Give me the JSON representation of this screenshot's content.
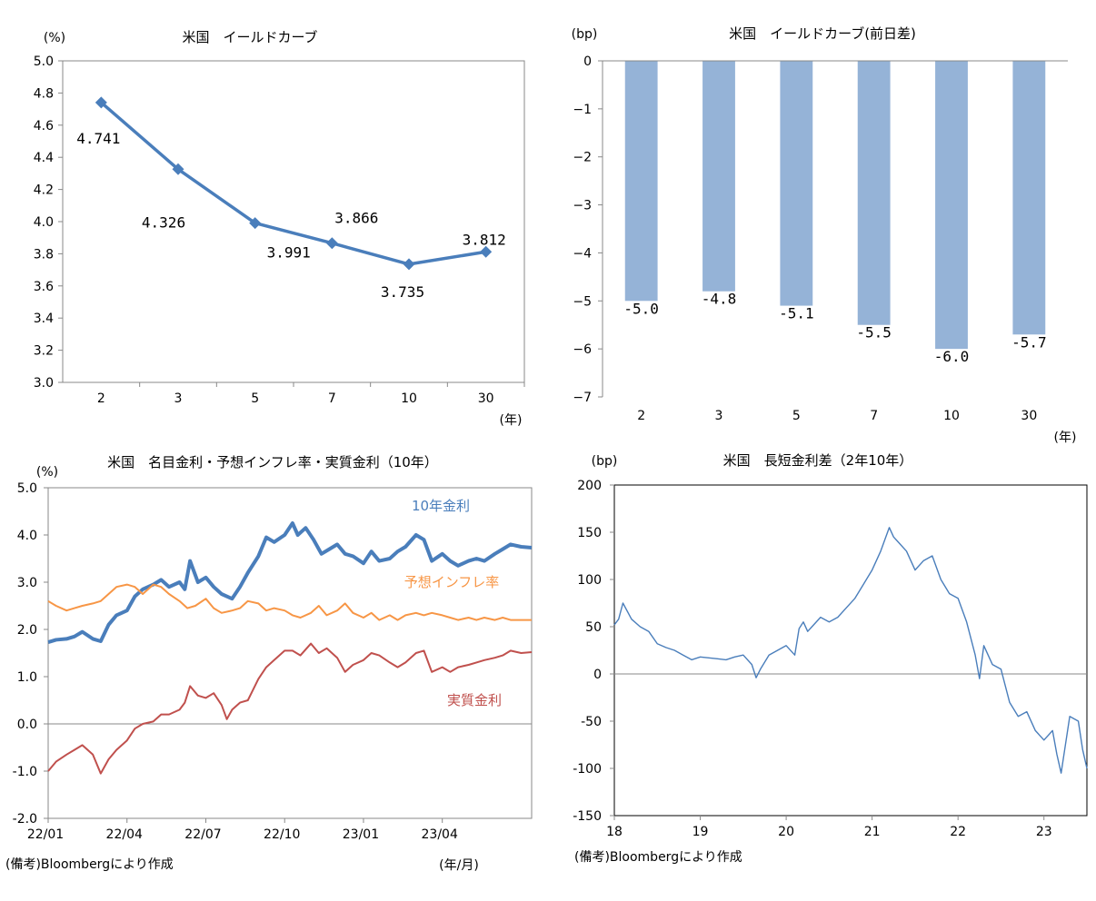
{
  "colors": {
    "yield_line": "#4A7EBB",
    "bar_fill": "#95B3D7",
    "nominal": "#4A7EBB",
    "inflation": "#F79646",
    "real": "#C0504D",
    "spread": "#4A7EBB",
    "axis": "#888888"
  },
  "footnotes": {
    "left": "(備考)Bloombergにより作成",
    "right": "(備考)Bloombergにより作成"
  },
  "chart_data": [
    {
      "type": "line",
      "title": "米国　イールドカーブ",
      "unit_label": "(%)",
      "xlabel": "(年)",
      "categories": [
        "2",
        "3",
        "5",
        "7",
        "10",
        "30"
      ],
      "values": [
        4.741,
        4.326,
        3.991,
        3.866,
        3.735,
        3.812
      ],
      "data_labels": [
        "4.741",
        "4.326",
        "3.991",
        "3.866",
        "3.735",
        "3.812"
      ],
      "ylim": [
        3.0,
        5.0
      ],
      "yticks": [
        "5.0",
        "4.8",
        "4.6",
        "4.4",
        "4.2",
        "4.0",
        "3.8",
        "3.6",
        "3.4",
        "3.2",
        "3.0"
      ],
      "marker": "diamond",
      "grid": false
    },
    {
      "type": "bar",
      "title": "米国　イールドカーブ(前日差)",
      "unit_label": "(bp)",
      "xlabel": "(年)",
      "categories": [
        "2",
        "3",
        "5",
        "7",
        "10",
        "30"
      ],
      "values": [
        -5.0,
        -4.8,
        -5.1,
        -5.5,
        -6.0,
        -5.7
      ],
      "data_labels": [
        "-5.0",
        "-4.8",
        "-5.1",
        "-5.5",
        "-6.0",
        "-5.7"
      ],
      "ylim": [
        -7,
        0
      ],
      "yticks": [
        "0",
        "−1",
        "−2",
        "−3",
        "−4",
        "−5",
        "−6",
        "−7"
      ],
      "grid": false
    },
    {
      "type": "line",
      "title": "米国　名目金利・予想インフレ率・実質金利（10年）",
      "unit_label": "(%)",
      "xlabel": "(年/月)",
      "xticks": [
        "22/01",
        "22/04",
        "22/07",
        "22/10",
        "23/01",
        "23/04"
      ],
      "yticks": [
        "5.0",
        "4.0",
        "3.0",
        "2.0",
        "1.0",
        "0.0",
        "-1.0",
        "-2.0"
      ],
      "ylim": [
        -2.0,
        5.0
      ],
      "xrange_months": [
        0,
        18.4
      ],
      "grid": false,
      "series": [
        {
          "name": "10年金利",
          "x": [
            0,
            0.3,
            0.7,
            1,
            1.3,
            1.7,
            2,
            2.3,
            2.6,
            3,
            3.3,
            3.6,
            4,
            4.3,
            4.6,
            5,
            5.2,
            5.4,
            5.7,
            6,
            6.3,
            6.6,
            7,
            7.3,
            7.6,
            8,
            8.3,
            8.6,
            9,
            9.3,
            9.5,
            9.8,
            10.1,
            10.4,
            10.7,
            11,
            11.3,
            11.6,
            12,
            12.3,
            12.6,
            13,
            13.3,
            13.6,
            14,
            14.3,
            14.6,
            15,
            15.3,
            15.6,
            16,
            16.3,
            16.6,
            17,
            17.3,
            17.6,
            18,
            18.4
          ],
          "values": [
            1.73,
            1.78,
            1.8,
            1.85,
            1.95,
            1.8,
            1.75,
            2.1,
            2.3,
            2.4,
            2.7,
            2.85,
            2.95,
            3.05,
            2.9,
            3.0,
            2.85,
            3.45,
            3.0,
            3.1,
            2.9,
            2.75,
            2.65,
            2.9,
            3.2,
            3.55,
            3.95,
            3.85,
            4.0,
            4.25,
            4.0,
            4.15,
            3.9,
            3.6,
            3.7,
            3.8,
            3.6,
            3.55,
            3.4,
            3.65,
            3.45,
            3.5,
            3.65,
            3.75,
            4.0,
            3.9,
            3.45,
            3.6,
            3.45,
            3.35,
            3.45,
            3.5,
            3.45,
            3.6,
            3.7,
            3.8,
            3.75,
            3.73
          ]
        },
        {
          "name": "予想インフレ率",
          "x": [
            0,
            0.3,
            0.7,
            1,
            1.3,
            1.7,
            2,
            2.3,
            2.6,
            3,
            3.3,
            3.6,
            4,
            4.3,
            4.6,
            5,
            5.3,
            5.6,
            6,
            6.3,
            6.6,
            7,
            7.3,
            7.6,
            8,
            8.3,
            8.6,
            9,
            9.3,
            9.6,
            10,
            10.3,
            10.6,
            11,
            11.3,
            11.6,
            12,
            12.3,
            12.6,
            13,
            13.3,
            13.6,
            14,
            14.3,
            14.6,
            15,
            15.3,
            15.6,
            16,
            16.3,
            16.6,
            17,
            17.3,
            17.6,
            18,
            18.4
          ],
          "values": [
            2.6,
            2.5,
            2.4,
            2.45,
            2.5,
            2.55,
            2.6,
            2.75,
            2.9,
            2.95,
            2.9,
            2.75,
            2.95,
            2.9,
            2.75,
            2.6,
            2.45,
            2.5,
            2.65,
            2.45,
            2.35,
            2.4,
            2.45,
            2.6,
            2.55,
            2.4,
            2.45,
            2.4,
            2.3,
            2.25,
            2.35,
            2.5,
            2.3,
            2.4,
            2.55,
            2.35,
            2.25,
            2.35,
            2.2,
            2.3,
            2.2,
            2.3,
            2.35,
            2.3,
            2.35,
            2.3,
            2.25,
            2.2,
            2.25,
            2.2,
            2.25,
            2.2,
            2.25,
            2.2,
            2.2,
            2.2
          ]
        },
        {
          "name": "実質金利",
          "x": [
            0,
            0.3,
            0.7,
            1,
            1.3,
            1.7,
            2,
            2.3,
            2.6,
            3,
            3.3,
            3.6,
            4,
            4.3,
            4.6,
            5,
            5.2,
            5.4,
            5.7,
            6,
            6.3,
            6.6,
            6.8,
            7,
            7.3,
            7.6,
            8,
            8.3,
            8.6,
            9,
            9.3,
            9.6,
            10,
            10.3,
            10.6,
            11,
            11.3,
            11.6,
            12,
            12.3,
            12.6,
            13,
            13.3,
            13.6,
            14,
            14.3,
            14.6,
            15,
            15.3,
            15.6,
            16,
            16.3,
            16.6,
            17,
            17.3,
            17.6,
            18,
            18.4
          ],
          "values": [
            -1.0,
            -0.8,
            -0.65,
            -0.55,
            -0.45,
            -0.65,
            -1.05,
            -0.75,
            -0.55,
            -0.35,
            -0.1,
            0.0,
            0.05,
            0.2,
            0.2,
            0.3,
            0.45,
            0.8,
            0.6,
            0.55,
            0.65,
            0.4,
            0.1,
            0.3,
            0.45,
            0.5,
            0.95,
            1.2,
            1.35,
            1.55,
            1.55,
            1.45,
            1.7,
            1.5,
            1.6,
            1.4,
            1.1,
            1.25,
            1.35,
            1.5,
            1.45,
            1.3,
            1.2,
            1.3,
            1.5,
            1.55,
            1.1,
            1.2,
            1.1,
            1.2,
            1.25,
            1.3,
            1.35,
            1.4,
            1.45,
            1.55,
            1.5,
            1.52
          ]
        }
      ]
    },
    {
      "type": "line",
      "title": "米国　長短金利差（2年10年）",
      "unit_label": "(bp)",
      "xticks": [
        "18",
        "19",
        "20",
        "21",
        "22",
        "23"
      ],
      "yticks": [
        "200",
        "150",
        "100",
        "50",
        "0",
        "-50",
        "-100",
        "-150"
      ],
      "ylim": [
        -150,
        200
      ],
      "xrange_years": [
        2018.0,
        2023.5
      ],
      "grid": false,
      "series": [
        {
          "name": "",
          "x": [
            2018.0,
            2018.05,
            2018.1,
            2018.2,
            2018.3,
            2018.4,
            2018.5,
            2018.6,
            2018.7,
            2018.8,
            2018.9,
            2019.0,
            2019.1,
            2019.2,
            2019.3,
            2019.4,
            2019.5,
            2019.6,
            2019.65,
            2019.7,
            2019.8,
            2019.9,
            2020.0,
            2020.1,
            2020.15,
            2020.2,
            2020.25,
            2020.3,
            2020.4,
            2020.5,
            2020.6,
            2020.7,
            2020.8,
            2020.9,
            2021.0,
            2021.1,
            2021.2,
            2021.25,
            2021.3,
            2021.4,
            2021.5,
            2021.6,
            2021.7,
            2021.8,
            2021.9,
            2022.0,
            2022.1,
            2022.2,
            2022.25,
            2022.3,
            2022.4,
            2022.5,
            2022.6,
            2022.7,
            2022.8,
            2022.9,
            2023.0,
            2023.1,
            2023.15,
            2023.2,
            2023.3,
            2023.4,
            2023.45,
            2023.5
          ],
          "values": [
            52,
            58,
            75,
            58,
            50,
            45,
            32,
            28,
            25,
            20,
            15,
            18,
            17,
            16,
            15,
            18,
            20,
            10,
            -4,
            5,
            20,
            25,
            30,
            20,
            48,
            55,
            45,
            50,
            60,
            55,
            60,
            70,
            80,
            95,
            110,
            130,
            155,
            145,
            140,
            130,
            110,
            120,
            125,
            100,
            85,
            80,
            55,
            20,
            -5,
            30,
            10,
            5,
            -30,
            -45,
            -40,
            -60,
            -70,
            -60,
            -85,
            -105,
            -45,
            -50,
            -80,
            -100
          ]
        }
      ]
    }
  ]
}
